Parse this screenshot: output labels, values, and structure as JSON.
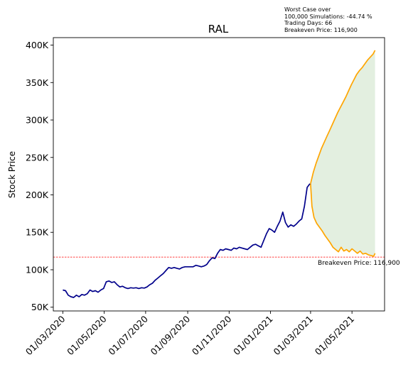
{
  "chart_data": {
    "type": "line",
    "title": "RAL",
    "ylabel": "Stock Price",
    "xlabel": "",
    "x_tick_labels": [
      "01/03/2020",
      "01/05/2020",
      "01/07/2020",
      "01/09/2020",
      "01/11/2020",
      "01/01/2021",
      "01/03/2021",
      "01/05/2021"
    ],
    "y_tick_labels": [
      "50K",
      "100K",
      "150K",
      "200K",
      "250K",
      "300K",
      "350K",
      "400K"
    ],
    "y_ticks": [
      50000,
      100000,
      150000,
      200000,
      250000,
      300000,
      350000,
      400000
    ],
    "ylim": [
      45000,
      410000
    ],
    "xlim": [
      "2020-02-16",
      "2021-06-18"
    ],
    "grid": false,
    "info_lines": [
      "Worst Case over",
      "100,000 Simulations: -44.74 %",
      "Trading Days: 66",
      "Breakeven Price: 116,900"
    ],
    "breakeven": {
      "value": 116900,
      "label": "Breakeven Price: 116,900"
    },
    "colors": {
      "history": "#00008b",
      "projection": "#ffa500",
      "fill": "#e3efe0",
      "breakeven": "#ff0000"
    },
    "series": [
      {
        "role": "history",
        "x": [
          "2020-03-01",
          "2020-03-05",
          "2020-03-09",
          "2020-03-13",
          "2020-03-17",
          "2020-03-21",
          "2020-03-25",
          "2020-03-29",
          "2020-04-02",
          "2020-04-06",
          "2020-04-10",
          "2020-04-14",
          "2020-04-18",
          "2020-04-22",
          "2020-04-26",
          "2020-04-30",
          "2020-05-04",
          "2020-05-08",
          "2020-05-12",
          "2020-05-16",
          "2020-05-20",
          "2020-05-24",
          "2020-05-28",
          "2020-06-01",
          "2020-06-05",
          "2020-06-09",
          "2020-06-13",
          "2020-06-17",
          "2020-06-21",
          "2020-06-25",
          "2020-06-29",
          "2020-07-03",
          "2020-07-07",
          "2020-07-11",
          "2020-07-15",
          "2020-07-19",
          "2020-07-23",
          "2020-07-27",
          "2020-07-31",
          "2020-08-04",
          "2020-08-08",
          "2020-08-12",
          "2020-08-16",
          "2020-08-20",
          "2020-08-24",
          "2020-08-28",
          "2020-09-01",
          "2020-09-05",
          "2020-09-09",
          "2020-09-13",
          "2020-09-17",
          "2020-09-21",
          "2020-09-25",
          "2020-09-29",
          "2020-10-03",
          "2020-10-07",
          "2020-10-11",
          "2020-10-15",
          "2020-10-19",
          "2020-10-23",
          "2020-10-27",
          "2020-10-31",
          "2020-11-04",
          "2020-11-08",
          "2020-11-12",
          "2020-11-16",
          "2020-11-20",
          "2020-11-24",
          "2020-11-28",
          "2020-12-02",
          "2020-12-06",
          "2020-12-10",
          "2020-12-14",
          "2020-12-18",
          "2020-12-22",
          "2020-12-26",
          "2020-12-30",
          "2021-01-03",
          "2021-01-07",
          "2021-01-11",
          "2021-01-15",
          "2021-01-19",
          "2021-01-23",
          "2021-01-27",
          "2021-01-31",
          "2021-02-04",
          "2021-02-08",
          "2021-02-12",
          "2021-02-16",
          "2021-02-20",
          "2021-02-24",
          "2021-02-28"
        ],
        "values": [
          73000,
          72000,
          66000,
          64000,
          63000,
          66000,
          64000,
          67000,
          66000,
          68000,
          73000,
          71000,
          72000,
          70000,
          73000,
          75000,
          84000,
          85000,
          83000,
          84000,
          80000,
          77000,
          78000,
          76000,
          75000,
          76000,
          75500,
          76000,
          75000,
          76000,
          75500,
          77000,
          80000,
          82000,
          86000,
          89000,
          92000,
          95000,
          99000,
          103000,
          102000,
          103000,
          102000,
          101000,
          103000,
          104000,
          104000,
          104000,
          104000,
          106000,
          105000,
          104000,
          105000,
          107000,
          112000,
          116000,
          115000,
          122000,
          127000,
          126000,
          128000,
          127000,
          126000,
          129000,
          128000,
          130000,
          129000,
          128000,
          127000,
          130000,
          133000,
          134000,
          132000,
          130000,
          139000,
          148000,
          155000,
          153000,
          150000,
          158000,
          165000,
          177000,
          163000,
          157000,
          160000,
          158000,
          161000,
          165000,
          168000,
          185000,
          210000,
          215000
        ]
      },
      {
        "role": "projection-upper",
        "x": [
          "2021-03-01",
          "2021-03-05",
          "2021-03-09",
          "2021-03-13",
          "2021-03-17",
          "2021-03-21",
          "2021-03-25",
          "2021-03-29",
          "2021-04-02",
          "2021-04-06",
          "2021-04-10",
          "2021-04-14",
          "2021-04-18",
          "2021-04-22",
          "2021-04-26",
          "2021-04-30",
          "2021-05-04",
          "2021-05-08",
          "2021-05-12",
          "2021-05-16",
          "2021-05-20",
          "2021-05-24",
          "2021-05-28",
          "2021-06-01",
          "2021-06-04"
        ],
        "values": [
          215000,
          230000,
          242000,
          252000,
          262000,
          270000,
          278000,
          286000,
          294000,
          302000,
          310000,
          317000,
          324000,
          331000,
          339000,
          347000,
          354000,
          361000,
          366000,
          370000,
          375000,
          380000,
          384000,
          388000,
          393000
        ]
      },
      {
        "role": "projection-lower",
        "x": [
          "2021-03-01",
          "2021-03-03",
          "2021-03-06",
          "2021-03-10",
          "2021-03-14",
          "2021-03-18",
          "2021-03-22",
          "2021-03-26",
          "2021-03-30",
          "2021-04-03",
          "2021-04-07",
          "2021-04-11",
          "2021-04-15",
          "2021-04-19",
          "2021-04-23",
          "2021-04-27",
          "2021-05-01",
          "2021-05-05",
          "2021-05-09",
          "2021-05-13",
          "2021-05-17",
          "2021-05-21",
          "2021-05-25",
          "2021-05-29",
          "2021-06-02",
          "2021-06-04"
        ],
        "values": [
          215000,
          185000,
          170000,
          162000,
          157000,
          152000,
          146000,
          141000,
          136000,
          130000,
          127000,
          124000,
          130000,
          125000,
          127000,
          124000,
          128000,
          125000,
          122000,
          125000,
          121000,
          122000,
          120000,
          119000,
          118000,
          122000
        ]
      }
    ]
  }
}
